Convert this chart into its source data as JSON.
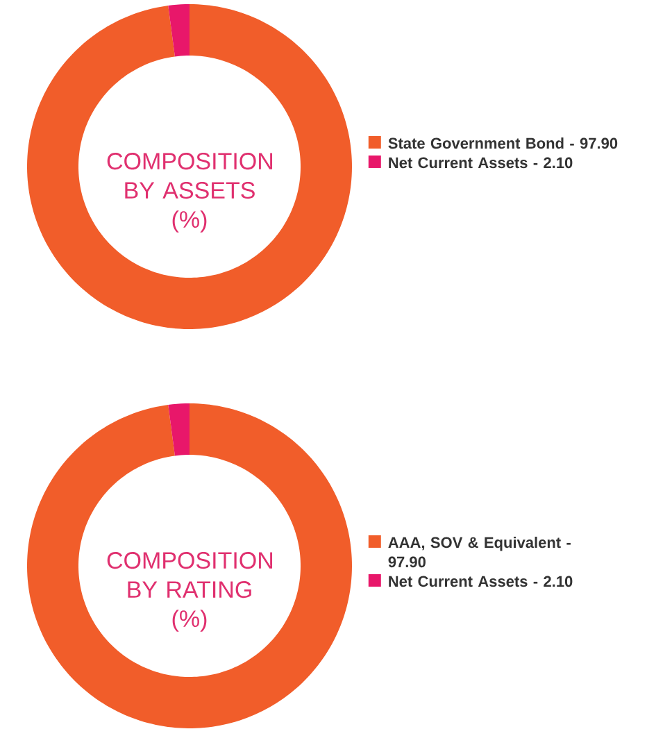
{
  "chart_data": [
    {
      "type": "donut",
      "title": "COMPOSITION BY ASSETS (%)",
      "categories": [
        "State Government Bond - 97.90",
        "Net Current Assets - 2.10"
      ],
      "values": [
        97.9,
        2.1
      ],
      "colors": [
        "#f15d2a",
        "#e8176a"
      ],
      "legend": "right"
    },
    {
      "type": "donut",
      "title": "COMPOSITION BY RATING (%)",
      "categories": [
        "AAA, SOV & Equivalent - 97.90",
        "Net Current Assets - 2.10"
      ],
      "values": [
        97.9,
        2.1
      ],
      "colors": [
        "#f15d2a",
        "#e8176a"
      ],
      "legend": "right"
    }
  ]
}
